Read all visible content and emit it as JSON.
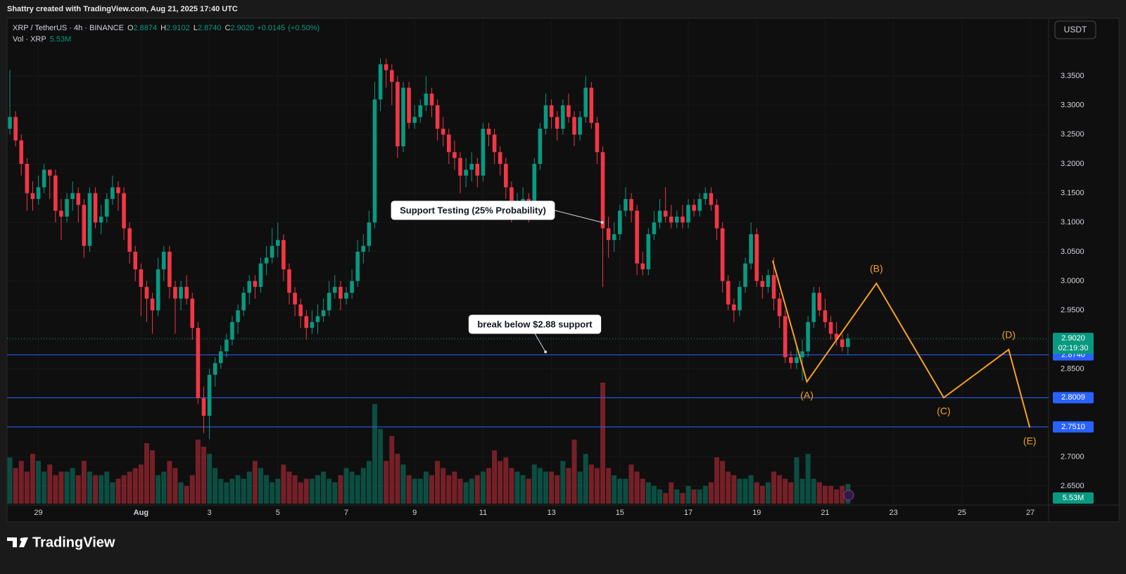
{
  "watermark": "Shattry created with TradingView.com, Aug 21, 2025 17:40 UTC",
  "currency_button": "USDT",
  "brand": "TradingView",
  "chart_data": {
    "type": "candlestick",
    "symbol": "XRP / TetherUS · 4h · BINANCE",
    "header_ohlc": [
      {
        "name": "O",
        "value": 2.8874,
        "label": "2.8874"
      },
      {
        "name": "H",
        "value": 2.9102,
        "label": "2.9102"
      },
      {
        "name": "L",
        "value": 2.874,
        "label": "2.8740"
      },
      {
        "name": "C",
        "value": 2.902,
        "label": "2.9020"
      }
    ],
    "change": {
      "value": 0.0145,
      "label": "+0.0145"
    },
    "change_percent": {
      "value": 0.5,
      "label": "(+0.50%)"
    },
    "volume_title": "Vol · XRP",
    "last_volume": {
      "value": 5.53,
      "label": "5.53M"
    },
    "last_price": {
      "value": 2.902,
      "label": "2.9020"
    },
    "countdown": "02:19:30",
    "up_color": "#089981",
    "down_color": "#f23645",
    "candles": [
      [
        3.26,
        3.36,
        3.25,
        3.28
      ],
      [
        3.28,
        3.29,
        3.23,
        3.24
      ],
      [
        3.24,
        3.25,
        3.18,
        3.2
      ],
      [
        3.2,
        3.21,
        3.12,
        3.15
      ],
      [
        3.15,
        3.17,
        3.12,
        3.14
      ],
      [
        3.14,
        3.18,
        3.13,
        3.16
      ],
      [
        3.16,
        3.2,
        3.15,
        3.19
      ],
      [
        3.19,
        3.19,
        3.14,
        3.18
      ],
      [
        3.18,
        3.19,
        3.1,
        3.12
      ],
      [
        3.12,
        3.14,
        3.07,
        3.11
      ],
      [
        3.11,
        3.15,
        3.1,
        3.14
      ],
      [
        3.14,
        3.17,
        3.12,
        3.15
      ],
      [
        3.15,
        3.16,
        3.1,
        3.13
      ],
      [
        3.13,
        3.14,
        3.04,
        3.06
      ],
      [
        3.06,
        3.16,
        3.05,
        3.15
      ],
      [
        3.15,
        3.16,
        3.09,
        3.1
      ],
      [
        3.1,
        3.13,
        3.08,
        3.11
      ],
      [
        3.11,
        3.15,
        3.1,
        3.14
      ],
      [
        3.14,
        3.18,
        3.13,
        3.16
      ],
      [
        3.16,
        3.17,
        3.12,
        3.15
      ],
      [
        3.15,
        3.16,
        3.07,
        3.09
      ],
      [
        3.09,
        3.1,
        3.03,
        3.05
      ],
      [
        3.05,
        3.06,
        3.0,
        3.02
      ],
      [
        3.02,
        3.03,
        2.94,
        2.99
      ],
      [
        2.99,
        3.0,
        2.93,
        2.97
      ],
      [
        2.97,
        2.98,
        2.91,
        2.95
      ],
      [
        2.95,
        3.04,
        2.94,
        3.02
      ],
      [
        3.02,
        3.06,
        3.0,
        3.05
      ],
      [
        3.05,
        3.06,
        2.97,
        2.99
      ],
      [
        2.99,
        3.0,
        2.91,
        2.97
      ],
      [
        2.97,
        3.0,
        2.95,
        2.99
      ],
      [
        2.99,
        3.01,
        2.96,
        2.97
      ],
      [
        2.97,
        2.98,
        2.9,
        2.92
      ],
      [
        2.92,
        2.93,
        2.79,
        2.8
      ],
      [
        2.8,
        2.82,
        2.74,
        2.77
      ],
      [
        2.77,
        2.85,
        2.73,
        2.84
      ],
      [
        2.84,
        2.87,
        2.82,
        2.86
      ],
      [
        2.86,
        2.89,
        2.85,
        2.88
      ],
      [
        2.88,
        2.91,
        2.87,
        2.9
      ],
      [
        2.9,
        2.94,
        2.89,
        2.93
      ],
      [
        2.93,
        2.96,
        2.91,
        2.95
      ],
      [
        2.95,
        2.99,
        2.94,
        2.98
      ],
      [
        2.98,
        3.01,
        2.96,
        3.0
      ],
      [
        3.0,
        3.01,
        2.97,
        2.99
      ],
      [
        2.99,
        3.04,
        2.98,
        3.03
      ],
      [
        3.03,
        3.06,
        3.01,
        3.04
      ],
      [
        3.04,
        3.09,
        3.03,
        3.06
      ],
      [
        3.06,
        3.1,
        3.04,
        3.07
      ],
      [
        3.07,
        3.08,
        3.0,
        3.02
      ],
      [
        3.02,
        3.03,
        2.96,
        2.98
      ],
      [
        2.98,
        2.99,
        2.94,
        2.96
      ],
      [
        2.96,
        2.97,
        2.92,
        2.94
      ],
      [
        2.94,
        2.95,
        2.9,
        2.92
      ],
      [
        2.92,
        2.95,
        2.91,
        2.93
      ],
      [
        2.93,
        2.96,
        2.91,
        2.94
      ],
      [
        2.94,
        2.97,
        2.93,
        2.95
      ],
      [
        2.95,
        3.0,
        2.94,
        2.98
      ],
      [
        2.98,
        3.01,
        2.97,
        2.99
      ],
      [
        2.99,
        3.0,
        2.95,
        2.97
      ],
      [
        2.97,
        2.99,
        2.96,
        2.98
      ],
      [
        2.98,
        3.02,
        2.97,
        3.0
      ],
      [
        3.0,
        3.07,
        2.99,
        3.05
      ],
      [
        3.05,
        3.08,
        3.03,
        3.06
      ],
      [
        3.06,
        3.12,
        3.05,
        3.1
      ],
      [
        3.1,
        3.34,
        3.09,
        3.31
      ],
      [
        3.31,
        3.38,
        3.29,
        3.37
      ],
      [
        3.37,
        3.38,
        3.33,
        3.36
      ],
      [
        3.36,
        3.37,
        3.3,
        3.34
      ],
      [
        3.34,
        3.35,
        3.21,
        3.23
      ],
      [
        3.23,
        3.34,
        3.22,
        3.33
      ],
      [
        3.33,
        3.34,
        3.26,
        3.27
      ],
      [
        3.27,
        3.3,
        3.26,
        3.28
      ],
      [
        3.28,
        3.31,
        3.27,
        3.3
      ],
      [
        3.3,
        3.35,
        3.29,
        3.32
      ],
      [
        3.32,
        3.33,
        3.28,
        3.3
      ],
      [
        3.3,
        3.31,
        3.24,
        3.26
      ],
      [
        3.26,
        3.28,
        3.23,
        3.25
      ],
      [
        3.25,
        3.26,
        3.2,
        3.22
      ],
      [
        3.22,
        3.24,
        3.19,
        3.21
      ],
      [
        3.21,
        3.22,
        3.15,
        3.18
      ],
      [
        3.18,
        3.21,
        3.16,
        3.19
      ],
      [
        3.19,
        3.22,
        3.17,
        3.2
      ],
      [
        3.2,
        3.21,
        3.16,
        3.18
      ],
      [
        3.18,
        3.27,
        3.17,
        3.26
      ],
      [
        3.26,
        3.27,
        3.23,
        3.25
      ],
      [
        3.25,
        3.26,
        3.2,
        3.22
      ],
      [
        3.22,
        3.23,
        3.18,
        3.2
      ],
      [
        3.2,
        3.21,
        3.14,
        3.16
      ],
      [
        3.16,
        3.17,
        3.1,
        3.12
      ],
      [
        3.12,
        3.15,
        3.11,
        3.13
      ],
      [
        3.13,
        3.16,
        3.12,
        3.14
      ],
      [
        3.14,
        3.15,
        3.1,
        3.12
      ],
      [
        3.12,
        3.21,
        3.11,
        3.2
      ],
      [
        3.2,
        3.27,
        3.19,
        3.26
      ],
      [
        3.26,
        3.32,
        3.25,
        3.3
      ],
      [
        3.3,
        3.31,
        3.26,
        3.28
      ],
      [
        3.28,
        3.29,
        3.24,
        3.26
      ],
      [
        3.26,
        3.31,
        3.25,
        3.3
      ],
      [
        3.3,
        3.32,
        3.27,
        3.28
      ],
      [
        3.28,
        3.29,
        3.23,
        3.25
      ],
      [
        3.25,
        3.29,
        3.24,
        3.28
      ],
      [
        3.28,
        3.35,
        3.27,
        3.33
      ],
      [
        3.33,
        3.34,
        3.26,
        3.27
      ],
      [
        3.27,
        3.28,
        3.2,
        3.22
      ],
      [
        3.22,
        3.23,
        2.99,
        3.09
      ],
      [
        3.09,
        3.11,
        3.04,
        3.07
      ],
      [
        3.07,
        3.1,
        3.05,
        3.08
      ],
      [
        3.08,
        3.13,
        3.07,
        3.12
      ],
      [
        3.12,
        3.16,
        3.11,
        3.14
      ],
      [
        3.14,
        3.15,
        3.1,
        3.12
      ],
      [
        3.12,
        3.13,
        3.01,
        3.03
      ],
      [
        3.03,
        3.05,
        3.01,
        3.02
      ],
      [
        3.02,
        3.09,
        3.01,
        3.08
      ],
      [
        3.08,
        3.12,
        3.07,
        3.1
      ],
      [
        3.1,
        3.14,
        3.09,
        3.12
      ],
      [
        3.12,
        3.16,
        3.1,
        3.11
      ],
      [
        3.11,
        3.13,
        3.09,
        3.1
      ],
      [
        3.1,
        3.12,
        3.09,
        3.11
      ],
      [
        3.11,
        3.13,
        3.09,
        3.1
      ],
      [
        3.1,
        3.14,
        3.09,
        3.13
      ],
      [
        3.13,
        3.14,
        3.11,
        3.12
      ],
      [
        3.12,
        3.15,
        3.11,
        3.14
      ],
      [
        3.14,
        3.16,
        3.13,
        3.15
      ],
      [
        3.15,
        3.16,
        3.12,
        3.13
      ],
      [
        3.13,
        3.14,
        3.07,
        3.09
      ],
      [
        3.09,
        3.1,
        2.98,
        3.0
      ],
      [
        3.0,
        3.01,
        2.95,
        2.96
      ],
      [
        2.96,
        2.97,
        2.93,
        2.95
      ],
      [
        2.95,
        3.0,
        2.94,
        2.99
      ],
      [
        2.99,
        3.04,
        2.98,
        3.03
      ],
      [
        3.03,
        3.1,
        3.02,
        3.08
      ],
      [
        3.08,
        3.09,
        2.99,
        3.0
      ],
      [
        3.0,
        3.01,
        2.97,
        2.99
      ],
      [
        2.99,
        3.02,
        2.98,
        3.01
      ],
      [
        3.01,
        3.04,
        2.95,
        2.97
      ],
      [
        2.97,
        2.98,
        2.92,
        2.94
      ],
      [
        2.94,
        2.95,
        2.86,
        2.87
      ],
      [
        2.87,
        2.88,
        2.85,
        2.86
      ],
      [
        2.86,
        2.89,
        2.85,
        2.87
      ],
      [
        2.87,
        2.9,
        2.83,
        2.88
      ],
      [
        2.88,
        2.94,
        2.87,
        2.93
      ],
      [
        2.93,
        2.99,
        2.92,
        2.98
      ],
      [
        2.98,
        2.99,
        2.94,
        2.95
      ],
      [
        2.95,
        2.97,
        2.92,
        2.93
      ],
      [
        2.93,
        2.94,
        2.9,
        2.91
      ],
      [
        2.91,
        2.93,
        2.89,
        2.9
      ],
      [
        2.9,
        2.91,
        2.88,
        2.8874
      ],
      [
        2.8874,
        2.9102,
        2.874,
        2.902
      ]
    ],
    "volumes": [
      13,
      10,
      12,
      9,
      14,
      12,
      9,
      11,
      8,
      9,
      9,
      10,
      8,
      12,
      9,
      8,
      8,
      9,
      6,
      7,
      8,
      9,
      10,
      11,
      17,
      15,
      8,
      9,
      12,
      10,
      6,
      5,
      8,
      18,
      16,
      14,
      10,
      7,
      6,
      7,
      8,
      7,
      9,
      12,
      10,
      8,
      6,
      7,
      11,
      9,
      8,
      6,
      7,
      7,
      8,
      9,
      7,
      6,
      8,
      10,
      9,
      8,
      10,
      12,
      28,
      21,
      12,
      19,
      14,
      11,
      8,
      7,
      7,
      9,
      8,
      12,
      10,
      8,
      9,
      7,
      6,
      7,
      8,
      9,
      10,
      15,
      12,
      13,
      10,
      9,
      8,
      7,
      11,
      10,
      9,
      9,
      8,
      12,
      10,
      18,
      9,
      14,
      11,
      10,
      34,
      10,
      8,
      7,
      7,
      11,
      9,
      7,
      6,
      5,
      4,
      3,
      6,
      4,
      3,
      5,
      4,
      4,
      5,
      6,
      13,
      12,
      9,
      8,
      7,
      7,
      8,
      6,
      5,
      6,
      9,
      8,
      7,
      6,
      13,
      7,
      14,
      7,
      6,
      5,
      5,
      4,
      5,
      5.53
    ],
    "xlim": [
      -0.5,
      182.2
    ],
    "xticks": [
      {
        "value": 5,
        "label": "29"
      },
      {
        "value": 23,
        "label": "Aug"
      },
      {
        "value": 35,
        "label": "3"
      },
      {
        "value": 47,
        "label": "5"
      },
      {
        "value": 59,
        "label": "7"
      },
      {
        "value": 71,
        "label": "9"
      },
      {
        "value": 83,
        "label": "11"
      },
      {
        "value": 95,
        "label": "13"
      },
      {
        "value": 107,
        "label": "15"
      },
      {
        "value": 119,
        "label": "17"
      },
      {
        "value": 131,
        "label": "19"
      },
      {
        "value": 143,
        "label": "21"
      },
      {
        "value": 155,
        "label": "23"
      },
      {
        "value": 167,
        "label": "25"
      },
      {
        "value": 179,
        "label": "27"
      }
    ],
    "ylim": [
      2.62,
      3.4485
    ],
    "yticks": [
      {
        "value": 2.65,
        "label": "2.6500"
      },
      {
        "value": 2.7,
        "label": "2.7000"
      },
      {
        "value": 2.75,
        "label": "2.7500"
      },
      {
        "value": 2.8,
        "label": "2.8000"
      },
      {
        "value": 2.85,
        "label": "2.8500"
      },
      {
        "value": 2.9,
        "label": "2.9000"
      },
      {
        "value": 2.95,
        "label": "2.9500"
      },
      {
        "value": 3,
        "label": "3.0000"
      },
      {
        "value": 3.05,
        "label": "3.0500"
      },
      {
        "value": 3.1,
        "label": "3.1000"
      },
      {
        "value": 3.15,
        "label": "3.1500"
      },
      {
        "value": 3.2,
        "label": "3.2000"
      },
      {
        "value": 3.25,
        "label": "3.2500"
      },
      {
        "value": 3.3,
        "label": "3.3000"
      },
      {
        "value": 3.35,
        "label": "3.3500"
      }
    ],
    "levels": [
      {
        "value": 2.874,
        "label": "2.8740"
      },
      {
        "value": 2.8009,
        "label": "2.8009"
      },
      {
        "value": 2.751,
        "label": "2.7510"
      }
    ],
    "level_color": "#2962ff",
    "annotations": [
      {
        "text": "Support Testing (25% Probability)",
        "x": 103.9,
        "y": 3.1
      },
      {
        "text": "break below $2.88 support",
        "x": 93.95,
        "y": 2.879
      }
    ],
    "pattern": {
      "color": "#f7a21b",
      "points": [
        {
          "x": 133.8,
          "y": 3.035
        },
        {
          "x": 139.8,
          "y": 2.828,
          "label": "(A)"
        },
        {
          "x": 152,
          "y": 2.996,
          "label": "(B)"
        },
        {
          "x": 163.8,
          "y": 2.801,
          "label": "(C)"
        },
        {
          "x": 175.2,
          "y": 2.883,
          "label": "(D)"
        },
        {
          "x": 178.9,
          "y": 2.75,
          "label": "(E)"
        }
      ]
    }
  }
}
